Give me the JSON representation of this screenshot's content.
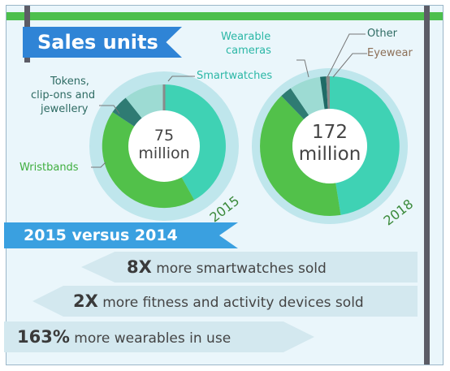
{
  "header": {
    "title": "Sales units"
  },
  "colors": {
    "smartwatches": "#3fd2b4",
    "wristbands": "#52c14a",
    "tokens": "#2f7b73",
    "wearable_cameras": "#9ddbd3",
    "other": "#1f6b66",
    "eyewear": "#8a8a8a",
    "ring": "#bfe6ec",
    "banner": "#2f84d6"
  },
  "charts": {
    "c2015": {
      "center_value": "75",
      "center_unit": "million",
      "year": "2015",
      "labels": {
        "tokens_line1": "Tokens,",
        "tokens_line2": "clip-ons and",
        "tokens_line3": "jewellery",
        "smartwatches": "Smartwatches",
        "wristbands": "Wristbands"
      }
    },
    "c2018": {
      "center_value": "172",
      "center_unit": "million",
      "year": "2018",
      "labels": {
        "cameras_line1": "Wearable",
        "cameras_line2": "cameras",
        "other": "Other",
        "eyewear": "Eyewear"
      }
    }
  },
  "comparison": {
    "heading": "2015 versus 2014",
    "stat1_bold": "8X",
    "stat1_text": " more smartwatches sold",
    "stat2_bold": "2X",
    "stat2_text": " more fitness and activity devices sold",
    "stat3_bold": "163%",
    "stat3_text": " more wearables in use"
  }
}
